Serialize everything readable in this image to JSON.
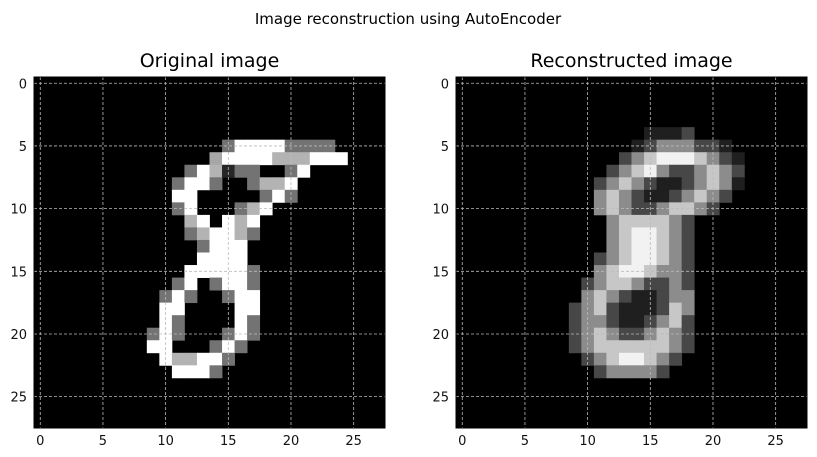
{
  "figure": {
    "suptitle": "Image reconstruction using AutoEncoder"
  },
  "chart_data": [
    {
      "type": "heatmap",
      "title": "Original image",
      "colormap": "gray",
      "xlim": [
        -0.5,
        27.5
      ],
      "ylim": [
        27.5,
        -0.5
      ],
      "xticks": [
        0,
        5,
        10,
        15,
        20,
        25
      ],
      "yticks": [
        0,
        5,
        10,
        15,
        20,
        25
      ],
      "grid": true,
      "rows": [
        "............................",
        "............................",
        "............................",
        "............................",
        "............................",
        "...............ABBBBAAAA....",
        "..............IBBBBCCCBBB...",
        "............ABCDAA..AB......",
        "...........ABBA..ACCB.......",
        "...........BB.....ABA.......",
        "...........AB...ACB.........",
        "............CB.BCB..........",
        "............ACBBCA..........",
        ".............ABBB...........",
        ".............BBBB...........",
        "............BBBBBA..........",
        "...........AB.ABBA..........",
        "..........ABA..ABB..........",
        "..........BB....BB..........",
        "..........BA....BA..........",
        ".........ABA...ABA..........",
        ".........BB...ABA...........",
        "..........BCCBBA............",
        "...........BBBA.............",
        "............................",
        "............................",
        "............................",
        "............................"
      ],
      "legend": {
        ".": 0.0,
        "A": 0.45,
        "B": 1.0,
        "C": 0.7,
        "D": 0.15,
        "I": 0.65
      }
    },
    {
      "type": "heatmap",
      "title": "Reconstructed image",
      "colormap": "gray",
      "xlim": [
        -0.5,
        27.5
      ],
      "ylim": [
        27.5,
        -0.5
      ],
      "xticks": [
        0,
        5,
        10,
        15,
        20,
        25
      ],
      "yticks": [
        0,
        5,
        10,
        15,
        20,
        25
      ],
      "grid": true,
      "rows": [
        "............................",
        "............................",
        "............................",
        "............................",
        "...............aaab.........",
        "..............abcccbba......",
        ".............bcdeeedcba.....",
        "............bcdecbbcdcb.....",
        "...........bcdcbaabcdca.....",
        "...........cdcbaabcdcb......",
        "...........cdcbbcddcb.......",
        "............cddddcb.........",
        "............cdeedcb.........",
        "............cdeedcb.........",
        "...........bcdeedcb.........",
        "...........cdeedccb.........",
        "..........bcddcbbcb.........",
        "..........cdcbaabcc.........",
        ".........bcdbaaabdc.........",
        ".........bccbaabcdb.........",
        ".........bcdcbbcdcb.........",
        ".........bcddddddcb.........",
        "..........bcdeedcb..........",
        "...........bccccb...........",
        "............................",
        "............................",
        "............................",
        "............................"
      ],
      "legend": {
        ".": 0.0,
        "a": 0.12,
        "b": 0.28,
        "c": 0.55,
        "d": 0.78,
        "e": 0.95
      }
    }
  ]
}
